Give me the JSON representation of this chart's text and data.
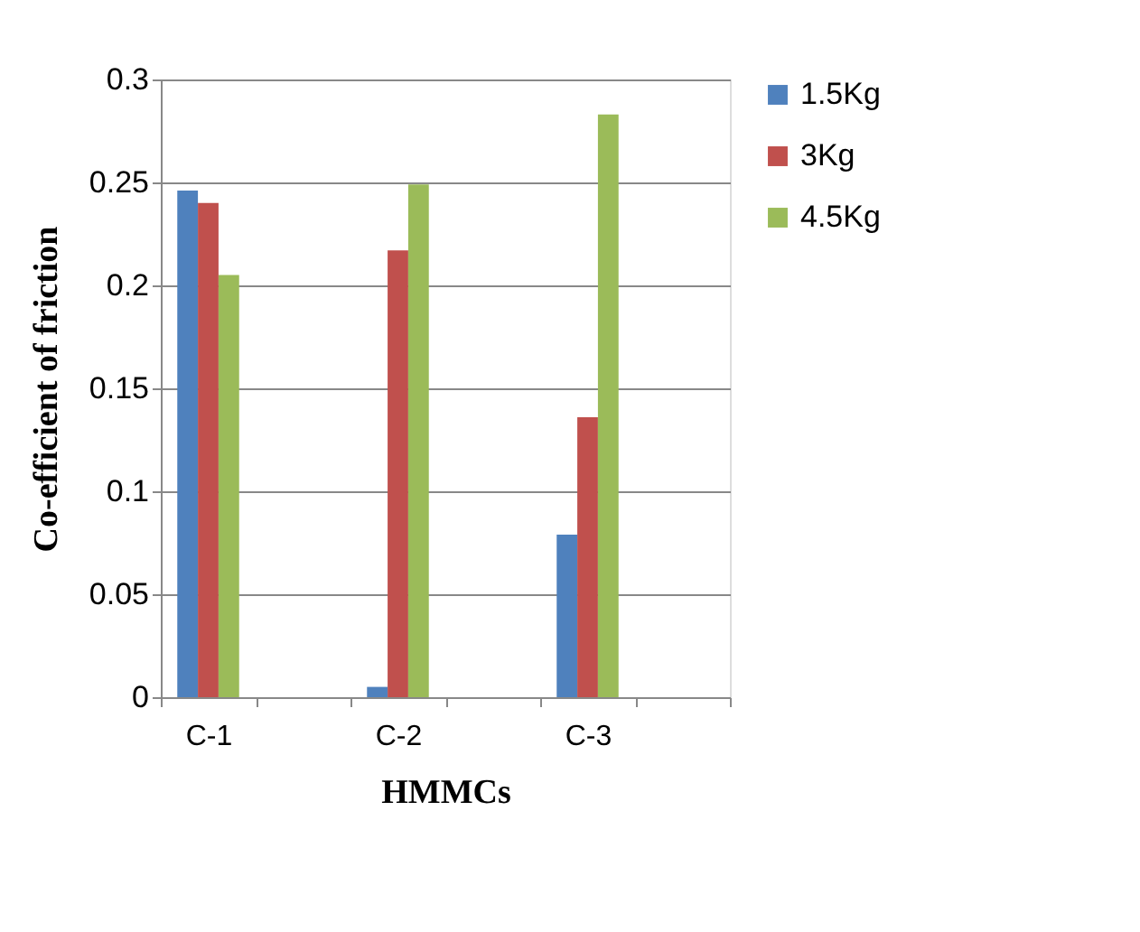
{
  "chart_data": {
    "type": "bar",
    "xlabel": "HMMCs",
    "ylabel": "Co-efficient of friction",
    "categories": [
      "C-1",
      null,
      "C-2",
      null,
      "C-3",
      null
    ],
    "series": [
      {
        "name": "1.5Kg",
        "color": "#4f81bd",
        "values": [
          0.246,
          null,
          0.005,
          null,
          0.079,
          null
        ]
      },
      {
        "name": "3Kg",
        "color": "#c0504d",
        "values": [
          0.24,
          null,
          0.217,
          null,
          0.136,
          null
        ]
      },
      {
        "name": "4.5Kg",
        "color": "#9bbb59",
        "values": [
          0.205,
          null,
          0.249,
          null,
          0.283,
          null
        ]
      }
    ],
    "ylim": [
      0,
      0.3
    ],
    "yticks": [
      0,
      0.05,
      0.1,
      0.15,
      0.2,
      0.25,
      0.3
    ],
    "grid": "y",
    "legend": "right"
  }
}
